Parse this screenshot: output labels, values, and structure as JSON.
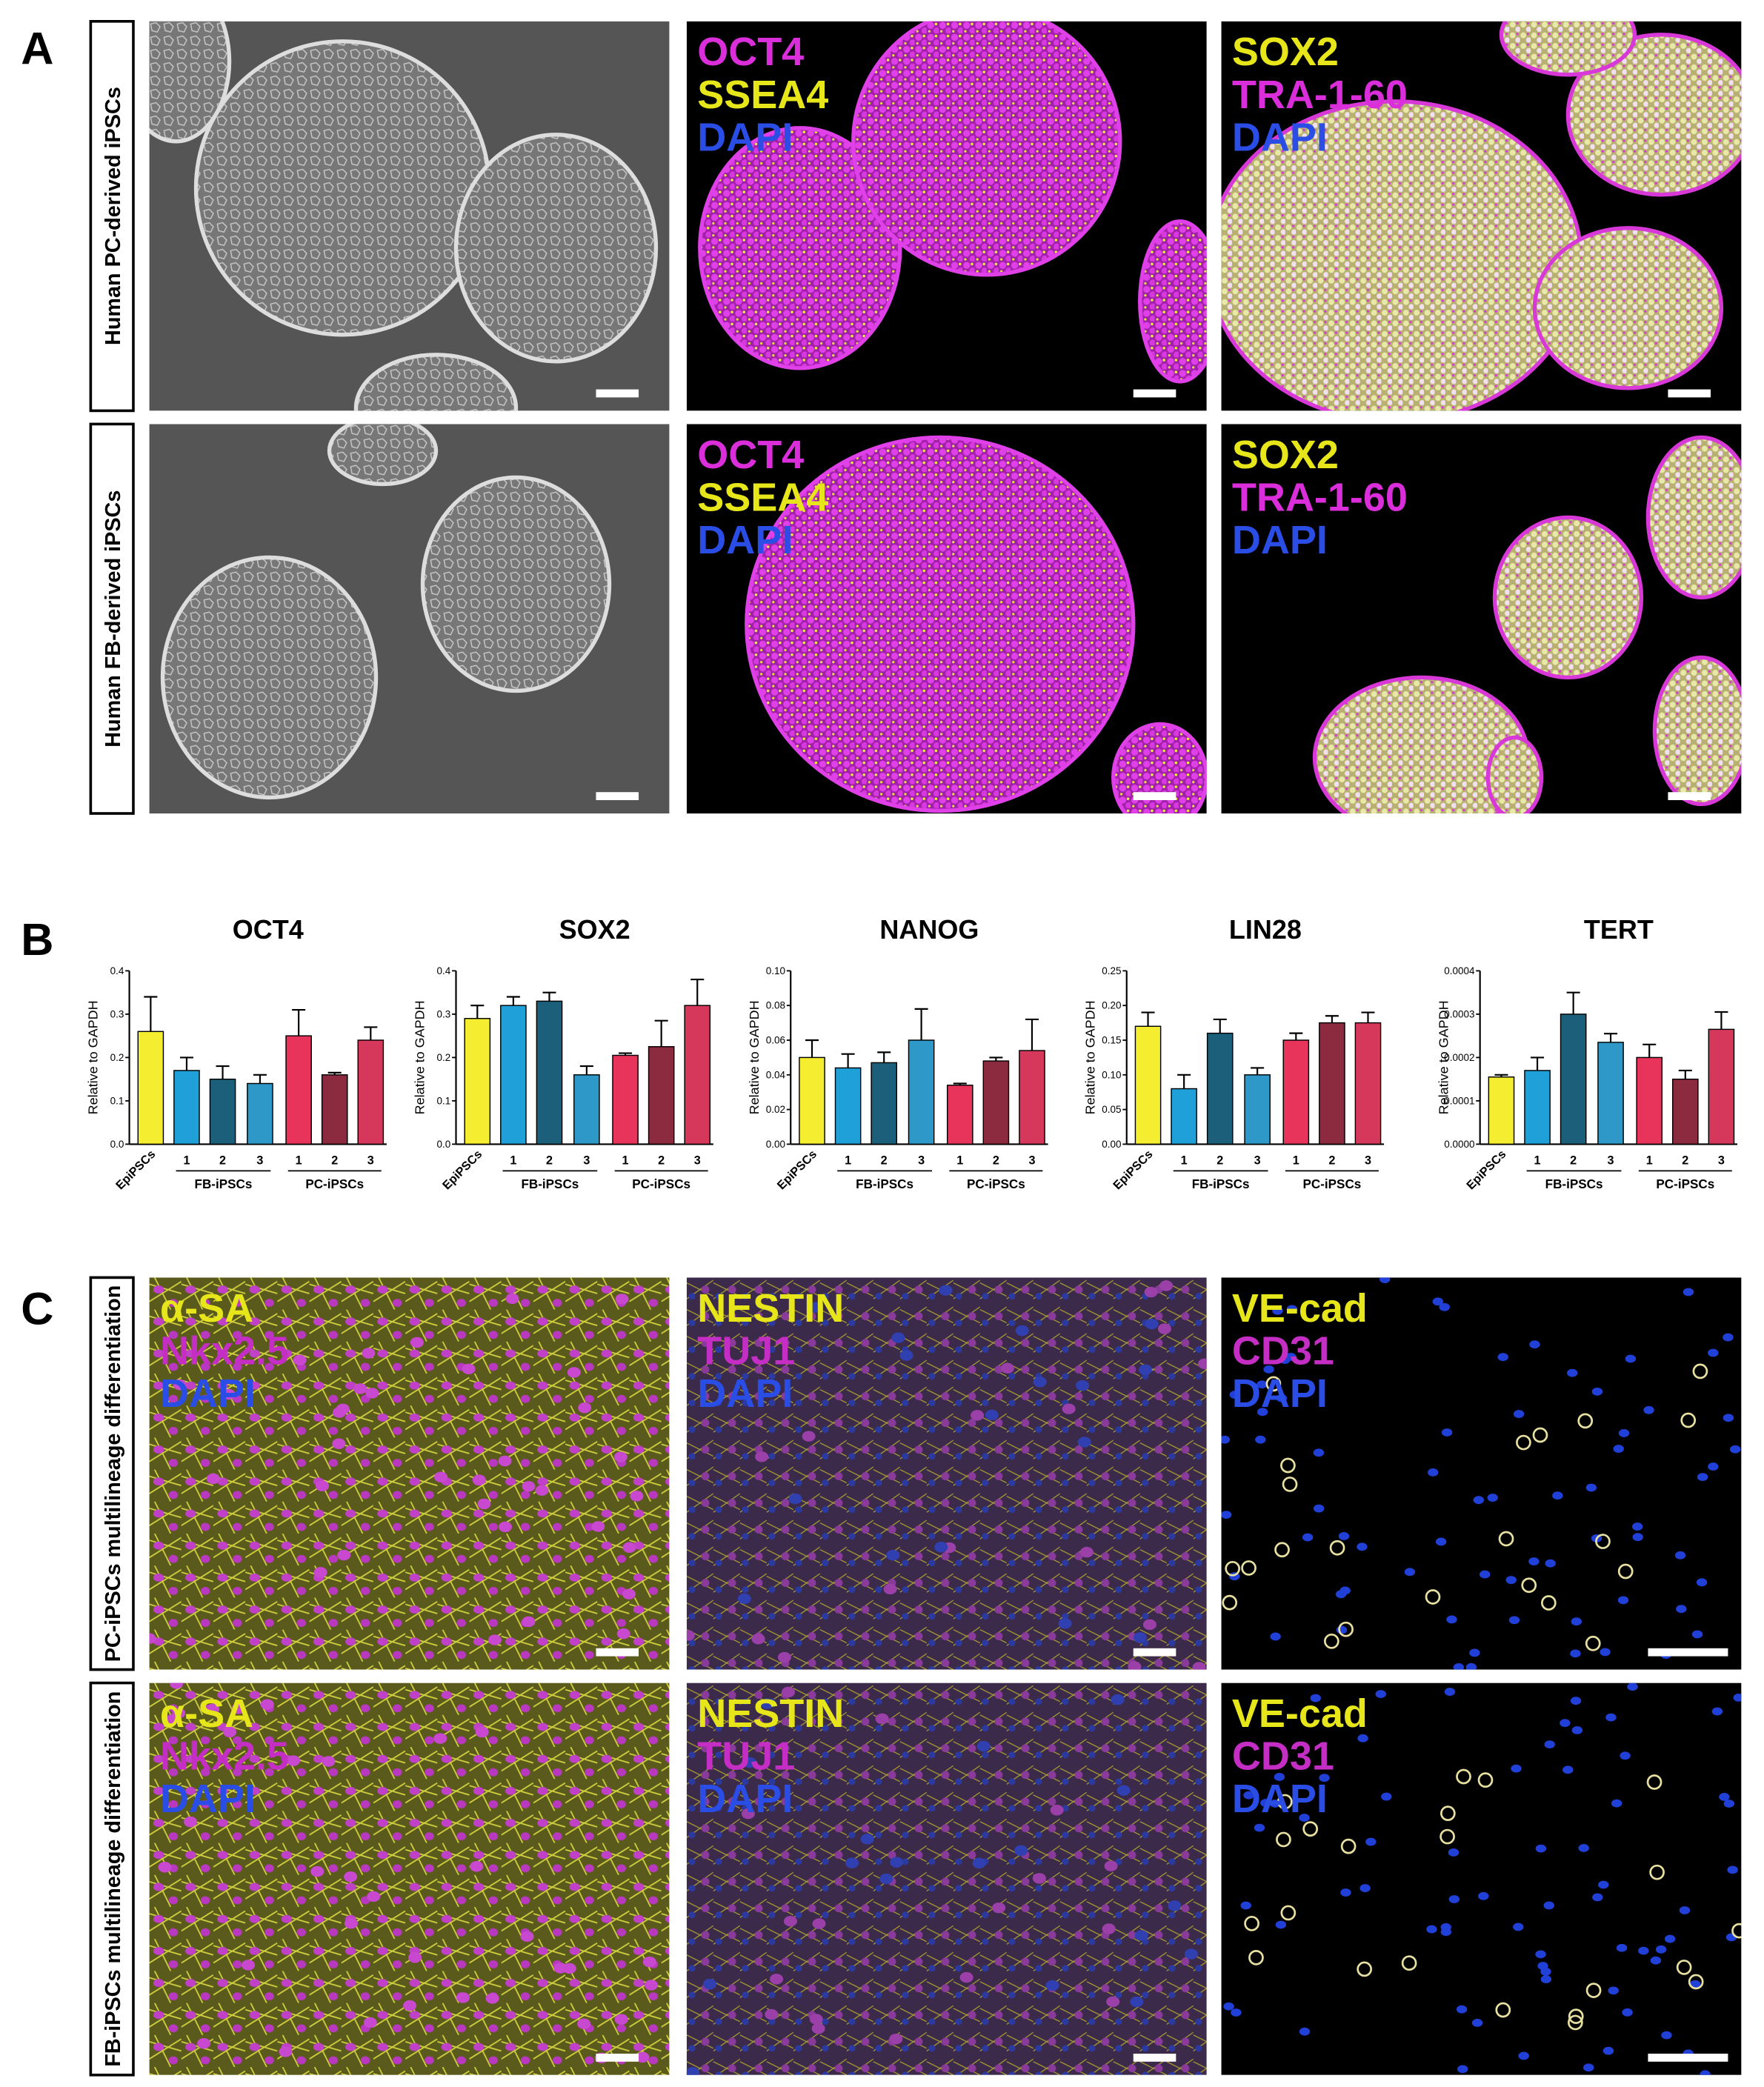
{
  "panel_a": {
    "letter": "A",
    "rows": [
      "Human PC-derived iPSCs",
      "Human FB-derived iPSCs"
    ],
    "stains": [
      [
        {
          "name": "OCT4",
          "color": "#d92ed9"
        },
        {
          "name": "SSEA4",
          "color": "#e6e61a"
        },
        {
          "name": "DAPI",
          "color": "#2a4de6"
        }
      ],
      [
        {
          "name": "SOX2",
          "color": "#e6e61a"
        },
        {
          "name": "TRA-1-60",
          "color": "#d92ed9"
        },
        {
          "name": "DAPI",
          "color": "#2a4de6"
        }
      ]
    ]
  },
  "panel_b": {
    "letter": "B"
  },
  "panel_c": {
    "letter": "C",
    "rows": [
      "PC-iPSCs multilineage differentiation",
      "FB-iPSCs multilineage differentiation"
    ],
    "stains": [
      [
        {
          "name": "α-SA",
          "color": "#e6e61a"
        },
        {
          "name": "Nkx2.5",
          "color": "#c42ec4"
        },
        {
          "name": "DAPI",
          "color": "#2a4de6"
        }
      ],
      [
        {
          "name": "NESTIN",
          "color": "#e6e61a"
        },
        {
          "name": "TUJ1",
          "color": "#c42ec4"
        },
        {
          "name": "DAPI",
          "color": "#2a4de6"
        }
      ],
      [
        {
          "name": "VE-cad",
          "color": "#e6e61a"
        },
        {
          "name": "CD31",
          "color": "#c42ec4"
        },
        {
          "name": "DAPI",
          "color": "#2a4de6"
        }
      ]
    ]
  },
  "chart_data": [
    {
      "type": "bar",
      "title": "OCT4",
      "y_label": "Relative to GAPDH",
      "categories": [
        "EpiPSCs",
        "1",
        "2",
        "3",
        "1",
        "2",
        "3"
      ],
      "groups": [
        "FB-iPSCs",
        "PC-iPSCs"
      ],
      "values": [
        0.26,
        0.17,
        0.15,
        0.14,
        0.25,
        0.16,
        0.24
      ],
      "errors": [
        0.08,
        0.03,
        0.03,
        0.02,
        0.06,
        0.005,
        0.03
      ],
      "colors": [
        "#f5ee30",
        "#1fa0d8",
        "#1c5f7a",
        "#2e98c8",
        "#e8345a",
        "#8c2a3f",
        "#d6385c"
      ],
      "ylim": [
        0,
        0.4
      ],
      "yticks": [
        {
          "value": 0,
          "label": "0.0"
        },
        0.1,
        0.2,
        0.3,
        0.4
      ]
    },
    {
      "type": "bar",
      "title": "SOX2",
      "y_label": "Relative to GAPDH",
      "categories": [
        "EpiPSCs",
        "1",
        "2",
        "3",
        "1",
        "2",
        "3"
      ],
      "groups": [
        "FB-iPSCs",
        "PC-iPSCs"
      ],
      "values": [
        0.29,
        0.32,
        0.33,
        0.16,
        0.205,
        0.225,
        0.32
      ],
      "errors": [
        0.03,
        0.02,
        0.02,
        0.02,
        0.005,
        0.06,
        0.06
      ],
      "colors": [
        "#f5ee30",
        "#1fa0d8",
        "#1c5f7a",
        "#2e98c8",
        "#e8345a",
        "#8c2a3f",
        "#d6385c"
      ],
      "ylim": [
        0,
        0.4
      ],
      "yticks": [
        {
          "value": 0,
          "label": "0.0"
        },
        0.1,
        0.2,
        0.3,
        0.4
      ]
    },
    {
      "type": "bar",
      "title": "NANOG",
      "y_label": "Relative to GAPDH",
      "categories": [
        "EpiPSCs",
        "1",
        "2",
        "3",
        "1",
        "2",
        "3"
      ],
      "groups": [
        "FB-iPSCs",
        "PC-iPSCs"
      ],
      "values": [
        0.05,
        0.044,
        0.047,
        0.06,
        0.034,
        0.048,
        0.054
      ],
      "errors": [
        0.01,
        0.008,
        0.006,
        0.018,
        0.001,
        0.002,
        0.018
      ],
      "colors": [
        "#f5ee30",
        "#1fa0d8",
        "#1c5f7a",
        "#2e98c8",
        "#e8345a",
        "#8c2a3f",
        "#d6385c"
      ],
      "ylim": [
        0,
        0.1
      ],
      "yticks": [
        {
          "value": 0,
          "label": "0.00"
        },
        0.02,
        0.04,
        0.06,
        0.08,
        {
          "value": 0.1,
          "label": "0.10"
        }
      ]
    },
    {
      "type": "bar",
      "title": "LIN28",
      "y_label": "Relative to GAPDH",
      "categories": [
        "EpiPSCs",
        "1",
        "2",
        "3",
        "1",
        "2",
        "3"
      ],
      "groups": [
        "FB-iPSCs",
        "PC-iPSCs"
      ],
      "values": [
        0.17,
        0.08,
        0.16,
        0.1,
        0.15,
        0.175,
        0.175
      ],
      "errors": [
        0.02,
        0.02,
        0.02,
        0.01,
        0.01,
        0.01,
        0.015
      ],
      "colors": [
        "#f5ee30",
        "#1fa0d8",
        "#1c5f7a",
        "#2e98c8",
        "#e8345a",
        "#8c2a3f",
        "#d6385c"
      ],
      "ylim": [
        0,
        0.25
      ],
      "yticks": [
        {
          "value": 0,
          "label": "0.00"
        },
        0.05,
        {
          "value": 0.1,
          "label": "0.10"
        },
        0.15,
        {
          "value": 0.2,
          "label": "0.20"
        },
        0.25
      ]
    },
    {
      "type": "bar",
      "title": "TERT",
      "y_label": "Relative to GAPDH",
      "categories": [
        "EpiPSCs",
        "1",
        "2",
        "3",
        "1",
        "2",
        "3"
      ],
      "groups": [
        "FB-iPSCs",
        "PC-iPSCs"
      ],
      "values": [
        0.000155,
        0.00017,
        0.0003,
        0.000235,
        0.0002,
        0.00015,
        0.000265
      ],
      "errors": [
        5e-06,
        3e-05,
        5e-05,
        2e-05,
        3e-05,
        2e-05,
        4e-05
      ],
      "colors": [
        "#f5ee30",
        "#1fa0d8",
        "#1c5f7a",
        "#2e98c8",
        "#e8345a",
        "#8c2a3f",
        "#d6385c"
      ],
      "ylim": [
        0,
        0.0004
      ],
      "yticks": [
        {
          "value": 0,
          "label": "0.0000"
        },
        0.0001,
        0.0002,
        0.0003,
        0.0004
      ]
    }
  ]
}
